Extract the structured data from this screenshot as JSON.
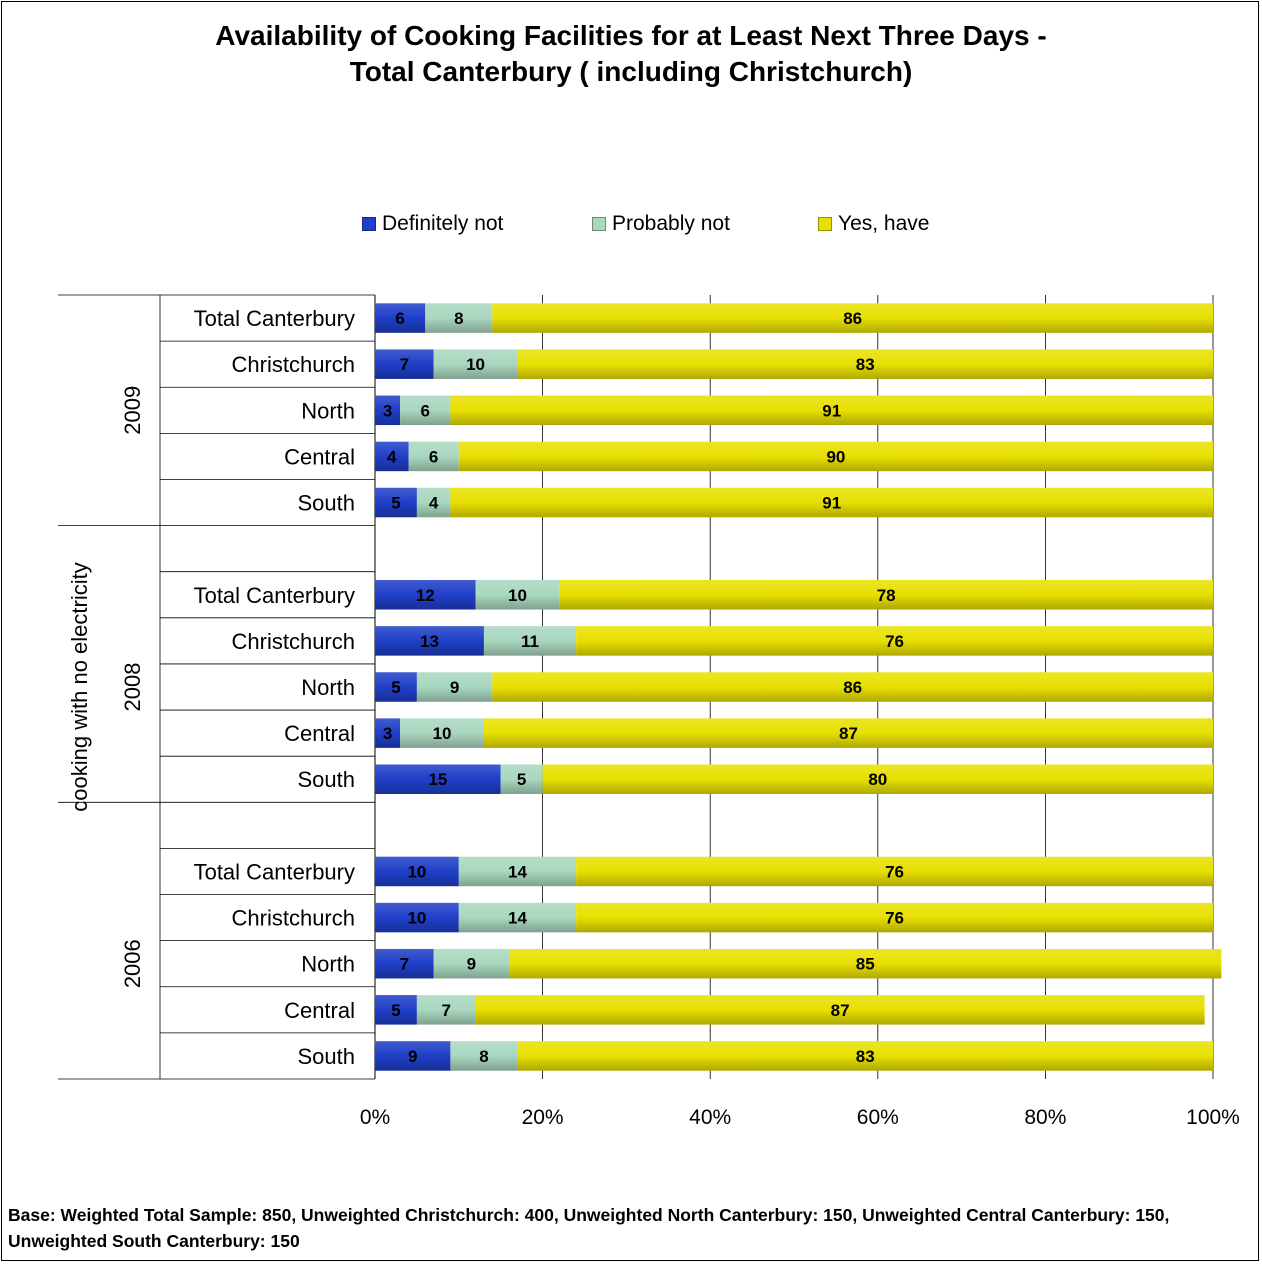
{
  "chart_data": {
    "type": "bar",
    "orientation": "horizontal",
    "stacked": "percent",
    "title_lines": [
      "Availability of Cooking Facilities for at Least Next Three Days -",
      "Total Canterbury ( including Christchurch)"
    ],
    "ylabel": "cooking with no electricity",
    "xlim": [
      0,
      100
    ],
    "x_ticks": [
      "0%",
      "20%",
      "40%",
      "60%",
      "80%",
      "100%"
    ],
    "grid": true,
    "legend_position": "top",
    "legend": [
      {
        "name": "Definitely not",
        "color": "#1f3fc8"
      },
      {
        "name": "Probably not",
        "color": "#a9d7bf"
      },
      {
        "name": "Yes, have",
        "color": "#e8e000"
      }
    ],
    "groups": [
      {
        "label": "2009",
        "rows": [
          {
            "category": "Total Canterbury",
            "values": [
              6,
              8,
              86
            ]
          },
          {
            "category": "Christchurch",
            "values": [
              7,
              10,
              83
            ]
          },
          {
            "category": "North",
            "values": [
              3,
              6,
              91
            ]
          },
          {
            "category": "Central",
            "values": [
              4,
              6,
              90
            ]
          },
          {
            "category": "South",
            "values": [
              5,
              4,
              91
            ]
          }
        ]
      },
      {
        "label": "2008",
        "rows": [
          {
            "category": "Total Canterbury",
            "values": [
              12,
              10,
              78
            ]
          },
          {
            "category": "Christchurch",
            "values": [
              13,
              11,
              76
            ]
          },
          {
            "category": "North",
            "values": [
              5,
              9,
              86
            ]
          },
          {
            "category": "Central",
            "values": [
              3,
              10,
              87
            ]
          },
          {
            "category": "South",
            "values": [
              15,
              5,
              80
            ]
          }
        ]
      },
      {
        "label": "2006",
        "rows": [
          {
            "category": "Total Canterbury",
            "values": [
              10,
              14,
              76
            ]
          },
          {
            "category": "Christchurch",
            "values": [
              10,
              14,
              76
            ]
          },
          {
            "category": "North",
            "values": [
              7,
              9,
              85
            ]
          },
          {
            "category": "Central",
            "values": [
              5,
              7,
              87
            ]
          },
          {
            "category": "South",
            "values": [
              9,
              8,
              83
            ]
          }
        ]
      }
    ]
  },
  "footnote": "Base:  Weighted Total Sample: 850, Unweighted Christchurch: 400, Unweighted North Canterbury: 150, Unweighted Central Canterbury: 150, Unweighted South Canterbury: 150"
}
